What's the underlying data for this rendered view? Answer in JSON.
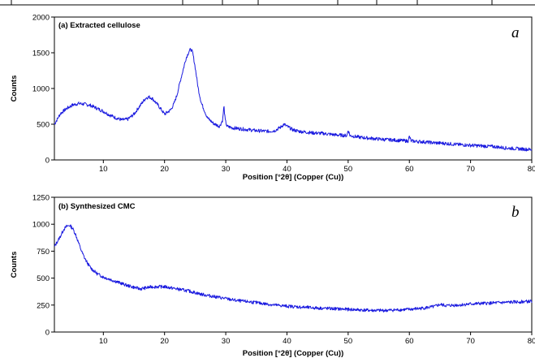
{
  "colors": {
    "series": "#1a1adf",
    "axis": "#000000"
  },
  "chart_data": [
    {
      "type": "line",
      "title": "(a) Extracted cellulose",
      "panel_letter": "a",
      "xlabel": "Position [°2θ] (Copper (Cu))",
      "ylabel": "Counts",
      "xlim": [
        2,
        80
      ],
      "ylim": [
        0,
        2000
      ],
      "xticks": [
        10,
        20,
        30,
        40,
        50,
        60,
        70,
        80
      ],
      "yticks": [
        0,
        500,
        1000,
        1500,
        2000
      ],
      "grid": false,
      "series": [
        {
          "x": [
            2,
            3,
            4,
            5,
            6,
            7,
            8,
            9,
            10,
            11,
            12,
            13,
            14,
            15,
            16,
            16.5,
            17,
            17.5,
            18,
            19,
            20,
            21,
            21.5,
            22,
            22.5,
            23,
            23.5,
            24,
            24.3,
            24.6,
            25,
            25.5,
            26,
            27,
            28,
            29,
            29.5,
            29.7,
            29.9,
            30.2,
            31,
            32,
            33,
            34,
            35,
            36,
            37,
            38,
            39,
            39.5,
            40,
            41,
            42,
            43,
            44,
            45,
            46,
            47,
            48,
            49,
            49.8,
            50,
            50.3,
            51,
            52,
            54,
            56,
            58,
            59.8,
            60,
            60.3,
            62,
            64,
            66,
            68,
            70,
            72,
            74,
            76,
            78,
            80
          ],
          "y": [
            500,
            650,
            720,
            770,
            790,
            780,
            760,
            720,
            680,
            630,
            590,
            560,
            570,
            640,
            760,
            820,
            870,
            880,
            860,
            760,
            640,
            700,
            780,
            900,
            1080,
            1250,
            1420,
            1520,
            1550,
            1500,
            1300,
            1000,
            800,
            590,
            510,
            470,
            560,
            760,
            560,
            470,
            450,
            440,
            430,
            420,
            410,
            405,
            400,
            410,
            460,
            500,
            470,
            420,
            400,
            390,
            380,
            375,
            370,
            360,
            350,
            345,
            340,
            420,
            340,
            330,
            315,
            300,
            285,
            275,
            265,
            330,
            265,
            255,
            240,
            230,
            215,
            205,
            195,
            185,
            165,
            155,
            145
          ]
        }
      ]
    },
    {
      "type": "line",
      "title": "(b) Synthesized CMC",
      "panel_letter": "b",
      "xlabel": "Position [°2θ] (Copper (Cu))",
      "ylabel": "Counts",
      "xlim": [
        2,
        80
      ],
      "ylim": [
        0,
        1250
      ],
      "xticks": [
        10,
        20,
        30,
        40,
        50,
        60,
        70,
        80
      ],
      "yticks": [
        0,
        250,
        500,
        750,
        1000,
        1250
      ],
      "grid": false,
      "series": [
        {
          "x": [
            2,
            2.5,
            3,
            3.5,
            4,
            4.5,
            5,
            5.5,
            6,
            6.5,
            7,
            7.5,
            8,
            9,
            10,
            12,
            14,
            16,
            18,
            20,
            22,
            24,
            26,
            28,
            30,
            32,
            34,
            36,
            38,
            40,
            42,
            44,
            46,
            48,
            50,
            52,
            54,
            56,
            58,
            60,
            62,
            64,
            65,
            66,
            68,
            70,
            72,
            74,
            76,
            78,
            80
          ],
          "y": [
            790,
            840,
            890,
            950,
            980,
            990,
            960,
            900,
            820,
            740,
            680,
            630,
            590,
            540,
            510,
            470,
            430,
            400,
            420,
            420,
            400,
            380,
            350,
            330,
            310,
            290,
            280,
            265,
            250,
            240,
            232,
            225,
            220,
            215,
            210,
            205,
            200,
            200,
            205,
            210,
            220,
            235,
            255,
            245,
            250,
            260,
            265,
            270,
            275,
            280,
            285
          ]
        }
      ]
    }
  ]
}
